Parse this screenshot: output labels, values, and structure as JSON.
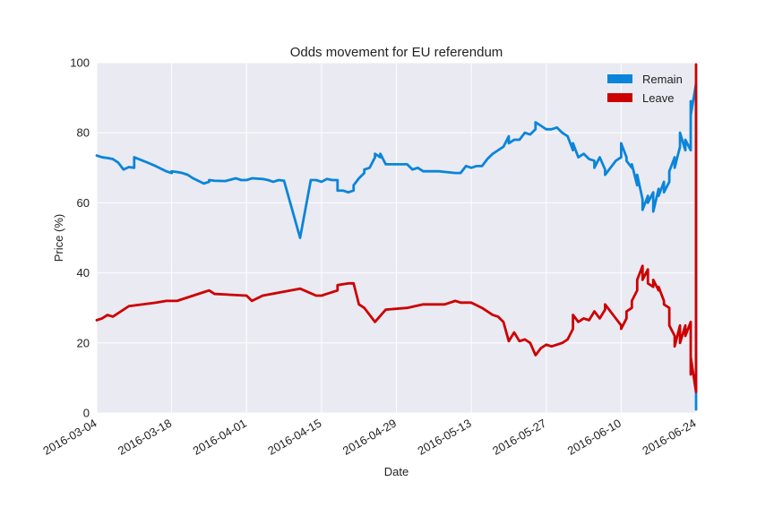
{
  "chart_data": {
    "type": "line",
    "title": "Odds movement for EU referendum",
    "xlabel": "Date",
    "ylabel": "Price (%)",
    "ylim": [
      0,
      100
    ],
    "yticks": [
      "0",
      "20",
      "40",
      "60",
      "80",
      "100"
    ],
    "xlim": [
      "2016-03-04",
      "2016-06-24"
    ],
    "xticks": [
      "2016-03-04",
      "2016-03-18",
      "2016-04-01",
      "2016-04-15",
      "2016-04-29",
      "2016-05-13",
      "2016-05-27",
      "2016-06-10",
      "2016-06-24"
    ],
    "grid": true,
    "legend_position": "upper-right",
    "series": [
      {
        "name": "Remain",
        "color": "#0a85d9",
        "points": [
          [
            "2016-03-04",
            73.5
          ],
          [
            "2016-03-05",
            73.0
          ],
          [
            "2016-03-06",
            72.8
          ],
          [
            "2016-03-07",
            72.5
          ],
          [
            "2016-03-08",
            71.5
          ],
          [
            "2016-03-09",
            69.5
          ],
          [
            "2016-03-10",
            70.2
          ],
          [
            "2016-03-11",
            70.0
          ],
          [
            "2016-03-11",
            73.0
          ],
          [
            "2016-03-13",
            71.8
          ],
          [
            "2016-03-15",
            70.5
          ],
          [
            "2016-03-17",
            69.0
          ],
          [
            "2016-03-18",
            68.5
          ],
          [
            "2016-03-18",
            69.0
          ],
          [
            "2016-03-19",
            68.8
          ],
          [
            "2016-03-20",
            68.5
          ],
          [
            "2016-03-21",
            68.0
          ],
          [
            "2016-03-22",
            67.0
          ],
          [
            "2016-03-24",
            65.5
          ],
          [
            "2016-03-25",
            66.0
          ],
          [
            "2016-03-25",
            66.5
          ],
          [
            "2016-03-26",
            66.3
          ],
          [
            "2016-03-28",
            66.2
          ],
          [
            "2016-03-30",
            67.0
          ],
          [
            "2016-03-31",
            66.5
          ],
          [
            "2016-04-01",
            66.5
          ],
          [
            "2016-04-02",
            67.0
          ],
          [
            "2016-04-04",
            66.8
          ],
          [
            "2016-04-05",
            66.5
          ],
          [
            "2016-04-06",
            66.0
          ],
          [
            "2016-04-07",
            66.5
          ],
          [
            "2016-04-08",
            66.3
          ],
          [
            "2016-04-11",
            50.0
          ],
          [
            "2016-04-13",
            66.5
          ],
          [
            "2016-04-14",
            66.5
          ],
          [
            "2016-04-15",
            66.0
          ],
          [
            "2016-04-16",
            66.8
          ],
          [
            "2016-04-17",
            66.5
          ],
          [
            "2016-04-18",
            66.5
          ],
          [
            "2016-04-18",
            63.5
          ],
          [
            "2016-04-19",
            63.5
          ],
          [
            "2016-04-20",
            63.0
          ],
          [
            "2016-04-21",
            63.5
          ],
          [
            "2016-04-21",
            65.0
          ],
          [
            "2016-04-22",
            67.0
          ],
          [
            "2016-04-23",
            68.5
          ],
          [
            "2016-04-23",
            69.5
          ],
          [
            "2016-04-24",
            70.0
          ],
          [
            "2016-04-25",
            73.0
          ],
          [
            "2016-04-25",
            74.0
          ],
          [
            "2016-04-26",
            73.0
          ],
          [
            "2016-04-26",
            74.0
          ],
          [
            "2016-04-27",
            71.0
          ],
          [
            "2016-05-01",
            71.0
          ],
          [
            "2016-05-02",
            69.5
          ],
          [
            "2016-05-03",
            70.0
          ],
          [
            "2016-05-04",
            69.0
          ],
          [
            "2016-05-07",
            69.0
          ],
          [
            "2016-05-10",
            68.5
          ],
          [
            "2016-05-11",
            68.5
          ],
          [
            "2016-05-12",
            70.5
          ],
          [
            "2016-05-13",
            70.0
          ],
          [
            "2016-05-14",
            70.5
          ],
          [
            "2016-05-15",
            70.5
          ],
          [
            "2016-05-16",
            72.5
          ],
          [
            "2016-05-17",
            74.0
          ],
          [
            "2016-05-18",
            75.0
          ],
          [
            "2016-05-19",
            76.0
          ],
          [
            "2016-05-20",
            79.0
          ],
          [
            "2016-05-20",
            77.0
          ],
          [
            "2016-05-21",
            78.0
          ],
          [
            "2016-05-22",
            78.0
          ],
          [
            "2016-05-23",
            80.0
          ],
          [
            "2016-05-24",
            79.5
          ],
          [
            "2016-05-25",
            81.0
          ],
          [
            "2016-05-25",
            83.0
          ],
          [
            "2016-05-26",
            82.0
          ],
          [
            "2016-05-27",
            81.0
          ],
          [
            "2016-05-28",
            81.0
          ],
          [
            "2016-05-29",
            81.5
          ],
          [
            "2016-05-30",
            80.0
          ],
          [
            "2016-05-31",
            79.0
          ],
          [
            "2016-06-01",
            75.0
          ],
          [
            "2016-06-01",
            77.0
          ],
          [
            "2016-06-02",
            73.0
          ],
          [
            "2016-06-03",
            74.0
          ],
          [
            "2016-06-04",
            72.5
          ],
          [
            "2016-06-05",
            72.0
          ],
          [
            "2016-06-05",
            70.0
          ],
          [
            "2016-06-06",
            73.0
          ],
          [
            "2016-06-07",
            69.5
          ],
          [
            "2016-06-07",
            68.0
          ],
          [
            "2016-06-08",
            70.0
          ],
          [
            "2016-06-09",
            72.0
          ],
          [
            "2016-06-10",
            73.0
          ],
          [
            "2016-06-10",
            77.0
          ],
          [
            "2016-06-11",
            73.0
          ],
          [
            "2016-06-11",
            72.0
          ],
          [
            "2016-06-12",
            70.0
          ],
          [
            "2016-06-12",
            71.0
          ],
          [
            "2016-06-13",
            65.0
          ],
          [
            "2016-06-13",
            68.0
          ],
          [
            "2016-06-14",
            61.0
          ],
          [
            "2016-06-14",
            58.0
          ],
          [
            "2016-06-15",
            62.0
          ],
          [
            "2016-06-15",
            60.0
          ],
          [
            "2016-06-16",
            63.0
          ],
          [
            "2016-06-16",
            57.5
          ],
          [
            "2016-06-17",
            64.0
          ],
          [
            "2016-06-17",
            62.0
          ],
          [
            "2016-06-18",
            66.0
          ],
          [
            "2016-06-18",
            63.0
          ],
          [
            "2016-06-19",
            66.0
          ],
          [
            "2016-06-19",
            69.0
          ],
          [
            "2016-06-20",
            73.0
          ],
          [
            "2016-06-20",
            70.0
          ],
          [
            "2016-06-21",
            76.0
          ],
          [
            "2016-06-21",
            80.0
          ],
          [
            "2016-06-22",
            75.0
          ],
          [
            "2016-06-22",
            78.0
          ],
          [
            "2016-06-23",
            75.0
          ],
          [
            "2016-06-23",
            80.0
          ],
          [
            "2016-06-23",
            89.0
          ],
          [
            "2016-06-23",
            85.0
          ],
          [
            "2016-06-24",
            94.0
          ],
          [
            "2016-06-24",
            62.0
          ],
          [
            "2016-06-24",
            1.0
          ]
        ]
      },
      {
        "name": "Leave",
        "color": "#cc0000",
        "points": [
          [
            "2016-03-04",
            26.5
          ],
          [
            "2016-03-05",
            27.0
          ],
          [
            "2016-03-06",
            28.0
          ],
          [
            "2016-03-07",
            27.5
          ],
          [
            "2016-03-10",
            30.5
          ],
          [
            "2016-03-15",
            31.5
          ],
          [
            "2016-03-17",
            32.0
          ],
          [
            "2016-03-19",
            32.0
          ],
          [
            "2016-03-24",
            34.5
          ],
          [
            "2016-03-25",
            35.0
          ],
          [
            "2016-03-26",
            34.0
          ],
          [
            "2016-04-01",
            33.5
          ],
          [
            "2016-04-02",
            32.0
          ],
          [
            "2016-04-04",
            33.5
          ],
          [
            "2016-04-11",
            35.5
          ],
          [
            "2016-04-14",
            33.5
          ],
          [
            "2016-04-15",
            33.5
          ],
          [
            "2016-04-16",
            34.0
          ],
          [
            "2016-04-18",
            35.0
          ],
          [
            "2016-04-18",
            36.5
          ],
          [
            "2016-04-20",
            37.0
          ],
          [
            "2016-04-21",
            37.0
          ],
          [
            "2016-04-22",
            31.0
          ],
          [
            "2016-04-23",
            30.0
          ],
          [
            "2016-04-25",
            26.0
          ],
          [
            "2016-04-27",
            29.5
          ],
          [
            "2016-05-01",
            30.0
          ],
          [
            "2016-05-04",
            31.0
          ],
          [
            "2016-05-08",
            31.0
          ],
          [
            "2016-05-10",
            32.0
          ],
          [
            "2016-05-11",
            31.5
          ],
          [
            "2016-05-13",
            31.5
          ],
          [
            "2016-05-15",
            30.0
          ],
          [
            "2016-05-17",
            28.0
          ],
          [
            "2016-05-18",
            27.5
          ],
          [
            "2016-05-19",
            26.0
          ],
          [
            "2016-05-20",
            20.5
          ],
          [
            "2016-05-21",
            23.0
          ],
          [
            "2016-05-22",
            20.5
          ],
          [
            "2016-05-23",
            21.0
          ],
          [
            "2016-05-24",
            20.0
          ],
          [
            "2016-05-25",
            16.5
          ],
          [
            "2016-05-26",
            18.5
          ],
          [
            "2016-05-27",
            19.5
          ],
          [
            "2016-05-28",
            19.0
          ],
          [
            "2016-05-30",
            20.0
          ],
          [
            "2016-05-31",
            21.0
          ],
          [
            "2016-06-01",
            24.0
          ],
          [
            "2016-06-01",
            28.0
          ],
          [
            "2016-06-02",
            26.0
          ],
          [
            "2016-06-03",
            27.0
          ],
          [
            "2016-06-04",
            26.5
          ],
          [
            "2016-06-05",
            29.0
          ],
          [
            "2016-06-06",
            27.0
          ],
          [
            "2016-06-07",
            29.5
          ],
          [
            "2016-06-07",
            31.0
          ],
          [
            "2016-06-08",
            29.0
          ],
          [
            "2016-06-09",
            27.0
          ],
          [
            "2016-06-10",
            25.0
          ],
          [
            "2016-06-10",
            24.0
          ],
          [
            "2016-06-11",
            27.0
          ],
          [
            "2016-06-11",
            29.0
          ],
          [
            "2016-06-12",
            30.0
          ],
          [
            "2016-06-12",
            32.0
          ],
          [
            "2016-06-13",
            35.0
          ],
          [
            "2016-06-13",
            38.0
          ],
          [
            "2016-06-14",
            42.0
          ],
          [
            "2016-06-14",
            38.0
          ],
          [
            "2016-06-15",
            41.0
          ],
          [
            "2016-06-15",
            37.0
          ],
          [
            "2016-06-16",
            36.0
          ],
          [
            "2016-06-16",
            38.0
          ],
          [
            "2016-06-17",
            35.0
          ],
          [
            "2016-06-17",
            36.0
          ],
          [
            "2016-06-18",
            32.0
          ],
          [
            "2016-06-18",
            31.0
          ],
          [
            "2016-06-19",
            30.0
          ],
          [
            "2016-06-19",
            25.0
          ],
          [
            "2016-06-20",
            22.0
          ],
          [
            "2016-06-20",
            19.0
          ],
          [
            "2016-06-21",
            25.0
          ],
          [
            "2016-06-21",
            20.0
          ],
          [
            "2016-06-22",
            25.0
          ],
          [
            "2016-06-22",
            22.0
          ],
          [
            "2016-06-23",
            26.0
          ],
          [
            "2016-06-23",
            20.0
          ],
          [
            "2016-06-23",
            11.0
          ],
          [
            "2016-06-23",
            16.0
          ],
          [
            "2016-06-24",
            6.0
          ],
          [
            "2016-06-24",
            38.0
          ],
          [
            "2016-06-24",
            99.5
          ]
        ]
      }
    ]
  }
}
